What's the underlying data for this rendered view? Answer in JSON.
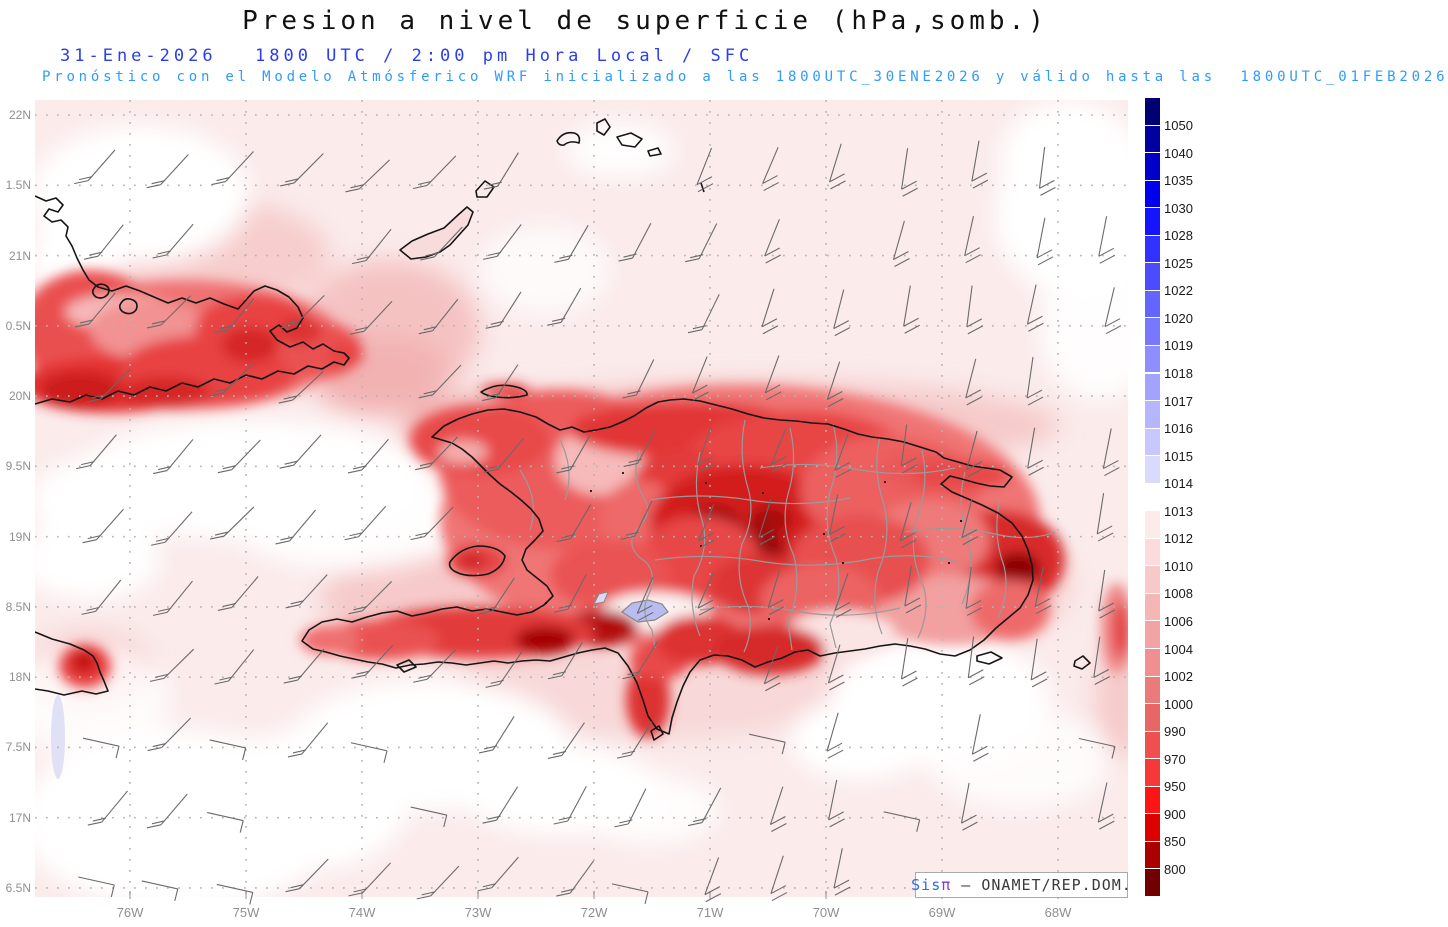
{
  "header": {
    "title": "Presion a nivel de superficie (hPa,somb.)",
    "date": "31-Ene-2026",
    "time_line": "1800 UTC / 2:00 pm Hora Local / SFC",
    "forecast_line": "Pronóstico con el Modelo Atmósferico WRF inicializado a las 1800UTC_30ENE2026 y válido hasta las  1800UTC_01FEB2026"
  },
  "colors": {
    "title_black": "#111111",
    "date_blue": "#2a3eea",
    "forecast_blue": "#2f9bfa",
    "axis_gray": "#8f8f8f",
    "watermark_sis_blue": "#2a6de8",
    "watermark_pi_purple": "#8833dd",
    "watermark_text_dark": "#3a3a3a",
    "ocean_pink": "#fbebeb",
    "coastline": "#151515",
    "province_gray": "#9a9a9a"
  },
  "axes": {
    "lat_labels": [
      "22N",
      "1.5N",
      "21N",
      "0.5N",
      "20N",
      "9.5N",
      "19N",
      "8.5N",
      "18N",
      "7.5N",
      "17N",
      "6.5N"
    ],
    "lon_labels": [
      "76W",
      "75W",
      "74W",
      "73W",
      "72W",
      "71W",
      "70W",
      "69W",
      "68W"
    ]
  },
  "colorbar": {
    "unit": "hPa",
    "labels": [
      "1050",
      "1040",
      "1035",
      "1030",
      "1028",
      "1025",
      "1022",
      "1020",
      "1019",
      "1018",
      "1017",
      "1016",
      "1015",
      "1014",
      "1013",
      "1012",
      "1010",
      "1008",
      "1006",
      "1004",
      "1002",
      "1000",
      "990",
      "970",
      "950",
      "900",
      "850",
      "800"
    ],
    "segment_colors": [
      "#000073",
      "#0000a0",
      "#0000c8",
      "#0000ef",
      "#1414ff",
      "#3232ff",
      "#4b4bff",
      "#6464ff",
      "#7878ff",
      "#8e8eff",
      "#a2a2ff",
      "#b6b6ff",
      "#c8c8ff",
      "#dadaff",
      "#ffffff",
      "#fdebeb",
      "#fbdbdb",
      "#f8c9c9",
      "#f5b6b6",
      "#f2a3a3",
      "#ef8f8f",
      "#eb7b7b",
      "#e76666",
      "#ef4f4f",
      "#f63838",
      "#fd1414",
      "#dc0000",
      "#aa0000",
      "#730000"
    ]
  },
  "watermark": {
    "prefix": "Sis",
    "pi": "π",
    "suffix": " – ONAMET/REP.DOM."
  }
}
